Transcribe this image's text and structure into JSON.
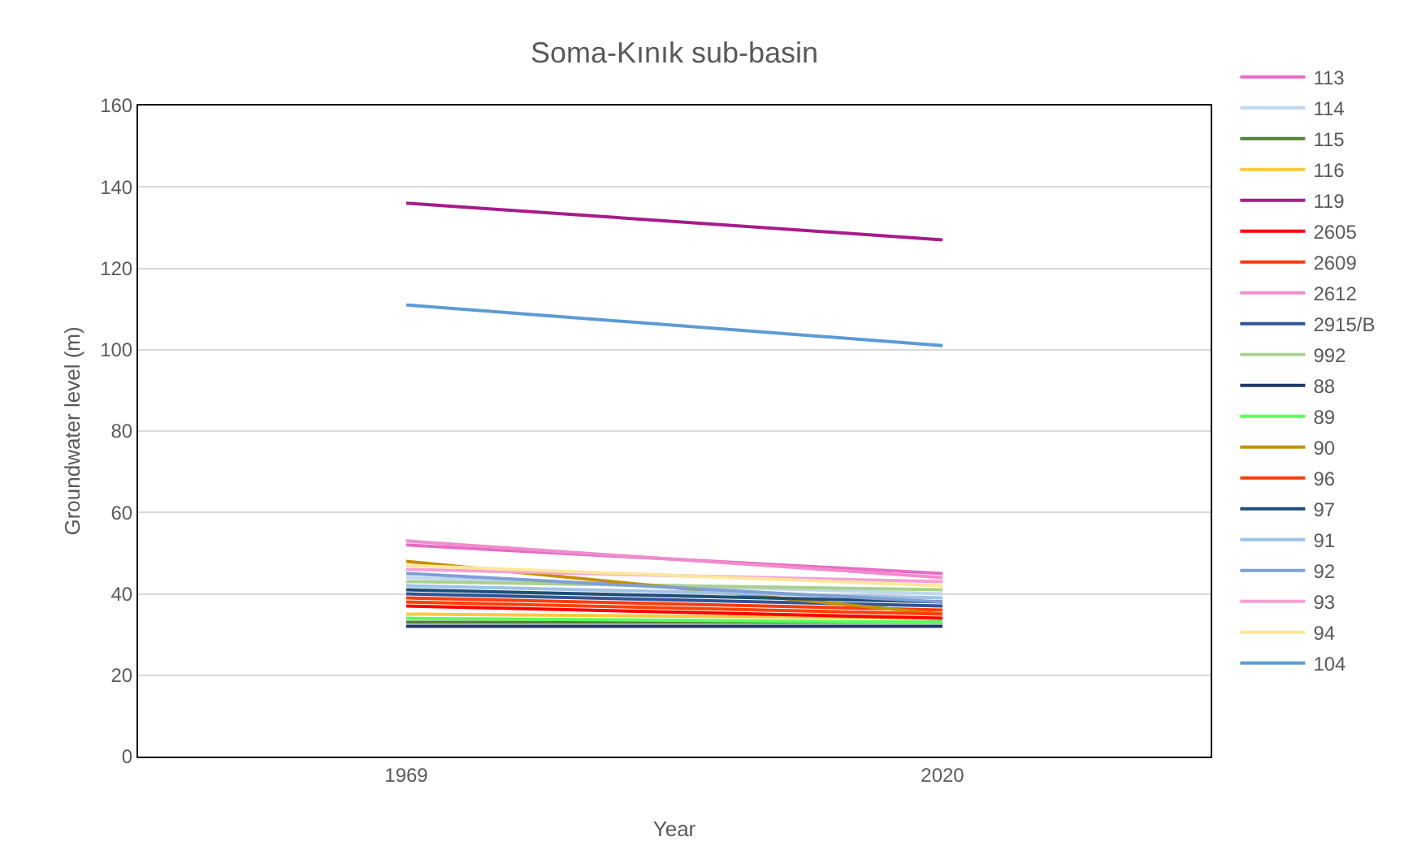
{
  "chart_data": {
    "type": "line",
    "title": "Soma-Kınık sub-basin",
    "xlabel": "Year",
    "ylabel": "Groundwater level (m)",
    "categories": [
      "1969",
      "2020"
    ],
    "ylim": [
      0,
      160
    ],
    "yticks": [
      0,
      20,
      40,
      60,
      80,
      100,
      120,
      140,
      160
    ],
    "grid": "y",
    "legend": "right",
    "marker": "none",
    "line_style": "solid",
    "series": [
      {
        "name": "113",
        "color": "#e86bc4",
        "values": [
          52,
          45
        ]
      },
      {
        "name": "114",
        "color": "#bdd7ee",
        "values": [
          44,
          40
        ]
      },
      {
        "name": "115",
        "color": "#548235",
        "values": [
          33,
          33
        ]
      },
      {
        "name": "116",
        "color": "#ffc83d",
        "values": [
          35,
          34
        ]
      },
      {
        "name": "119",
        "color": "#a61c8c",
        "values": [
          136,
          127
        ]
      },
      {
        "name": "2605",
        "color": "#ff0000",
        "values": [
          37,
          34
        ]
      },
      {
        "name": "2609",
        "color": "#ff3b0f",
        "values": [
          39,
          36
        ]
      },
      {
        "name": "2612",
        "color": "#f08ccd",
        "values": [
          53,
          44
        ]
      },
      {
        "name": "2915/B",
        "color": "#2f5597",
        "values": [
          40,
          37
        ]
      },
      {
        "name": "992",
        "color": "#a9d18e",
        "values": [
          43,
          41
        ]
      },
      {
        "name": "88",
        "color": "#1f3864",
        "values": [
          32,
          32
        ]
      },
      {
        "name": "89",
        "color": "#5cff5c",
        "values": [
          34,
          33
        ]
      },
      {
        "name": "90",
        "color": "#c49000",
        "values": [
          48,
          35
        ]
      },
      {
        "name": "96",
        "color": "#ff4000",
        "values": [
          38,
          35
        ]
      },
      {
        "name": "97",
        "color": "#1f4e79",
        "values": [
          41,
          38
        ]
      },
      {
        "name": "91",
        "color": "#9dc3e6",
        "values": [
          42,
          39
        ]
      },
      {
        "name": "92",
        "color": "#7f9fd4",
        "values": [
          45,
          38
        ]
      },
      {
        "name": "93",
        "color": "#f4a0d8",
        "values": [
          46,
          43
        ]
      },
      {
        "name": "94",
        "color": "#ffe699",
        "values": [
          47,
          42
        ]
      },
      {
        "name": "104",
        "color": "#5b9bd5",
        "values": [
          111,
          101
        ]
      }
    ]
  }
}
